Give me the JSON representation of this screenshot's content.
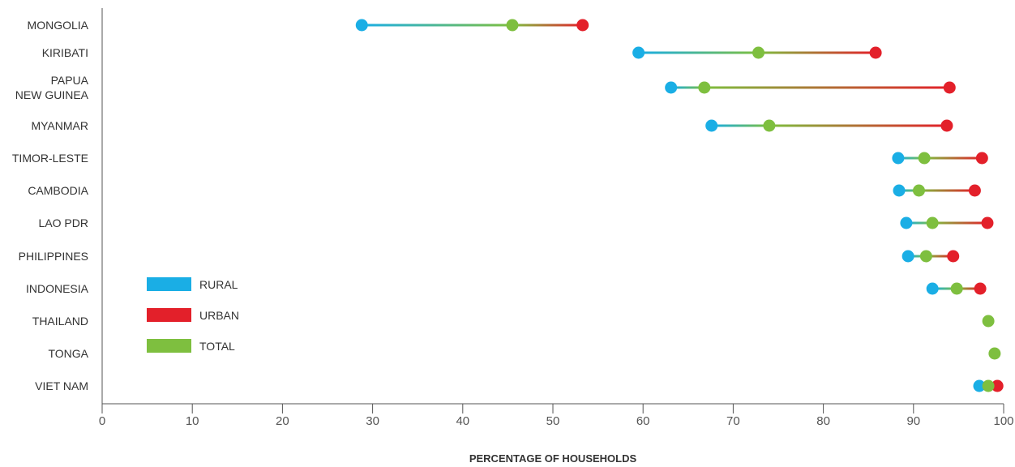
{
  "chart_data": {
    "type": "dumbbell",
    "xlabel": "PERCENTAGE OF HOUSEHOLDS",
    "xlim": [
      0,
      100
    ],
    "xticks": [
      0,
      10,
      20,
      30,
      40,
      50,
      60,
      70,
      80,
      90,
      100
    ],
    "series_colors": {
      "rural": "#1aaee5",
      "urban": "#e3202a",
      "total": "#7ebf3f"
    },
    "legend": {
      "position": "left-inside",
      "items": [
        {
          "key": "rural",
          "label": "RURAL"
        },
        {
          "key": "urban",
          "label": "URBAN"
        },
        {
          "key": "total",
          "label": "TOTAL"
        }
      ]
    },
    "rows": [
      {
        "label": [
          "MONGOLIA"
        ],
        "rural": 28.8,
        "total": 45.5,
        "urban": 53.3
      },
      {
        "label": [
          "KIRIBATI"
        ],
        "rural": 59.5,
        "total": 72.8,
        "urban": 85.8
      },
      {
        "label": [
          "PAPUA",
          "NEW GUINEA"
        ],
        "rural": 63.1,
        "total": 66.8,
        "urban": 94.0
      },
      {
        "label": [
          "MYANMAR"
        ],
        "rural": 67.6,
        "total": 74.0,
        "urban": 93.7
      },
      {
        "label": [
          "TIMOR-LESTE"
        ],
        "rural": 88.3,
        "total": 91.2,
        "urban": 97.6
      },
      {
        "label": [
          "CAMBODIA"
        ],
        "rural": 88.4,
        "total": 90.6,
        "urban": 96.8
      },
      {
        "label": [
          "LAO PDR"
        ],
        "rural": 89.2,
        "total": 92.1,
        "urban": 98.2
      },
      {
        "label": [
          "PHILIPPINES"
        ],
        "rural": 89.4,
        "total": 91.4,
        "urban": 94.4
      },
      {
        "label": [
          "INDONESIA"
        ],
        "rural": 92.1,
        "total": 94.8,
        "urban": 97.4
      },
      {
        "label": [
          "THAILAND"
        ],
        "rural": null,
        "total": 98.3,
        "urban": null
      },
      {
        "label": [
          "TONGA"
        ],
        "rural": null,
        "total": 99.0,
        "urban": null
      },
      {
        "label": [
          "VIET NAM"
        ],
        "rural": 97.3,
        "total": 98.3,
        "urban": 99.3
      }
    ]
  }
}
